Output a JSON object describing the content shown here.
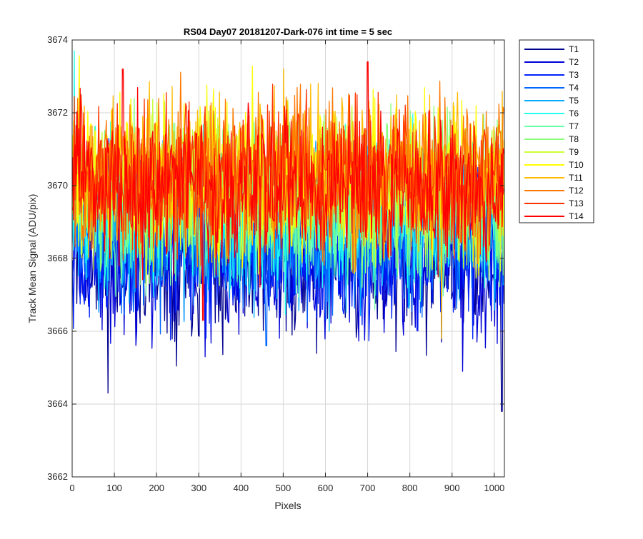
{
  "chart_data": {
    "type": "line",
    "title": "RS04 Day07 20181207-Dark-076 int time = 5 sec",
    "xlabel": "Pixels",
    "ylabel": "Track Mean Signal (ADU/pix)",
    "xlim": [
      0,
      1024
    ],
    "ylim": [
      3662,
      3674
    ],
    "xticks": [
      "0",
      "100",
      "200",
      "300",
      "400",
      "500",
      "600",
      "700",
      "800",
      "900",
      "1000"
    ],
    "yticks": [
      "3662",
      "3664",
      "3666",
      "3668",
      "3670",
      "3672",
      "3674"
    ],
    "grid": true,
    "legend_position": "outside-top-right",
    "x_range": [
      1,
      1024
    ],
    "series": [
      {
        "name": "T1",
        "color": "#00008f",
        "mean": 3668.0,
        "spread": 1.3,
        "seed": 11,
        "extremes": [
          [
            85,
            3664.3
          ],
          [
            1018,
            3663.8
          ]
        ]
      },
      {
        "name": "T2",
        "color": "#0000d8",
        "mean": 3668.1,
        "spread": 1.3,
        "seed": 12,
        "extremes": [
          [
            315,
            3665.3
          ],
          [
            925,
            3664.9
          ]
        ]
      },
      {
        "name": "T3",
        "color": "#0022ff",
        "mean": 3668.4,
        "spread": 1.3,
        "seed": 13,
        "extremes": []
      },
      {
        "name": "T4",
        "color": "#0066ff",
        "mean": 3668.7,
        "spread": 1.3,
        "seed": 14,
        "extremes": [
          [
            460,
            3665.6
          ]
        ]
      },
      {
        "name": "T5",
        "color": "#00aaff",
        "mean": 3668.9,
        "spread": 1.3,
        "seed": 15,
        "extremes": []
      },
      {
        "name": "T6",
        "color": "#22ffee",
        "mean": 3669.2,
        "spread": 1.3,
        "seed": 16,
        "extremes": [
          [
            5,
            3673.7
          ]
        ]
      },
      {
        "name": "T7",
        "color": "#66ffaa",
        "mean": 3669.4,
        "spread": 1.3,
        "seed": 17,
        "extremes": []
      },
      {
        "name": "T8",
        "color": "#88ff77",
        "mean": 3669.7,
        "spread": 1.3,
        "seed": 18,
        "extremes": []
      },
      {
        "name": "T9",
        "color": "#ccff33",
        "mean": 3670.0,
        "spread": 1.3,
        "seed": 19,
        "extremes": []
      },
      {
        "name": "T10",
        "color": "#ffff00",
        "mean": 3670.3,
        "spread": 1.3,
        "seed": 20,
        "extremes": []
      },
      {
        "name": "T11",
        "color": "#ffbb00",
        "mean": 3670.4,
        "spread": 1.3,
        "seed": 21,
        "extremes": [
          [
            875,
            3665.8
          ]
        ]
      },
      {
        "name": "T12",
        "color": "#ff7700",
        "mean": 3670.3,
        "spread": 1.3,
        "seed": 22,
        "extremes": []
      },
      {
        "name": "T13",
        "color": "#ff3300",
        "mean": 3670.2,
        "spread": 1.3,
        "seed": 23,
        "extremes": []
      },
      {
        "name": "T14",
        "color": "#ff0000",
        "mean": 3670.0,
        "spread": 1.25,
        "seed": 24,
        "extremes": [
          [
            120,
            3673.2
          ],
          [
            700,
            3673.4
          ],
          [
            310,
            3666.3
          ]
        ]
      }
    ]
  }
}
